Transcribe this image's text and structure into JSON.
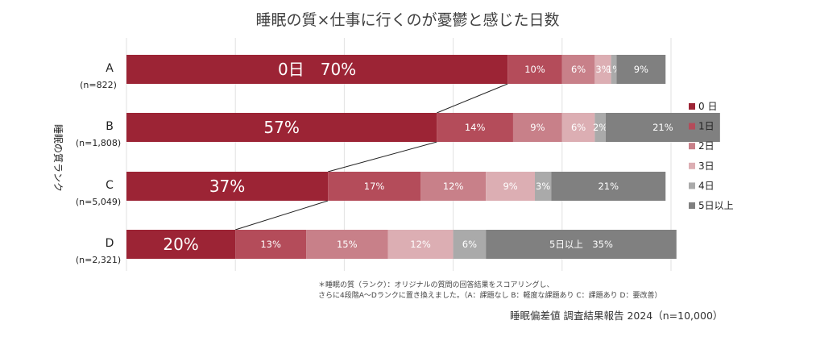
{
  "chart_data": {
    "type": "bar",
    "orientation": "horizontal",
    "stacked": "100%",
    "title": "睡眠の質×仕事に行くのが憂鬱と感じた日数",
    "ylabel": "睡眠の質ランク",
    "xlim": [
      0,
      100
    ],
    "grid": true,
    "legend_position": "right",
    "categories": [
      {
        "label": "A",
        "n": "(n=822)"
      },
      {
        "label": "B",
        "n": "(n=1,808)"
      },
      {
        "label": "C",
        "n": "(n=5,049)"
      },
      {
        "label": "D",
        "n": "(n=2,321)"
      }
    ],
    "series": [
      {
        "name": "0日",
        "color": "#9c2435",
        "values": [
          70,
          57,
          37,
          20
        ]
      },
      {
        "name": "1日",
        "color": "#b44c5a",
        "values": [
          10,
          14,
          17,
          13
        ]
      },
      {
        "name": "2日",
        "color": "#c88089",
        "values": [
          6,
          9,
          12,
          15
        ]
      },
      {
        "name": "3日",
        "color": "#dcaeb3",
        "values": [
          3,
          6,
          9,
          12
        ]
      },
      {
        "name": "4日",
        "color": "#aaaaaa",
        "values": [
          1,
          2,
          3,
          6
        ]
      },
      {
        "name": "5日以上",
        "color": "#808080",
        "values": [
          9,
          21,
          21,
          35
        ]
      }
    ],
    "data_labels": [
      [
        "0日　70%",
        "10%",
        "6%",
        "3%",
        "1%",
        "9%"
      ],
      [
        "57%",
        "14%",
        "9%",
        "6%",
        "2%",
        "21%"
      ],
      [
        "37%",
        "17%",
        "12%",
        "9%",
        "3%",
        "21%"
      ],
      [
        "20%",
        "13%",
        "15%",
        "12%",
        "6%",
        "5日以上　35%"
      ]
    ],
    "legend_labels": [
      "0 日",
      "1日",
      "2日",
      "3日",
      "4日",
      "5日以上"
    ],
    "connector_lines": "between 0日 segments"
  },
  "notes": {
    "line1": "＊睡眠の質（ランク）：オリジナルの質問の回答結果をスコアリングし、",
    "line2": "さらに4段階A〜Dランクに置き換えました。（A：課題なし B：軽度な課題あり C：課題あり D：要改善）"
  },
  "source": "睡眠偏差値 調査結果報告 2024（n=10,000）"
}
